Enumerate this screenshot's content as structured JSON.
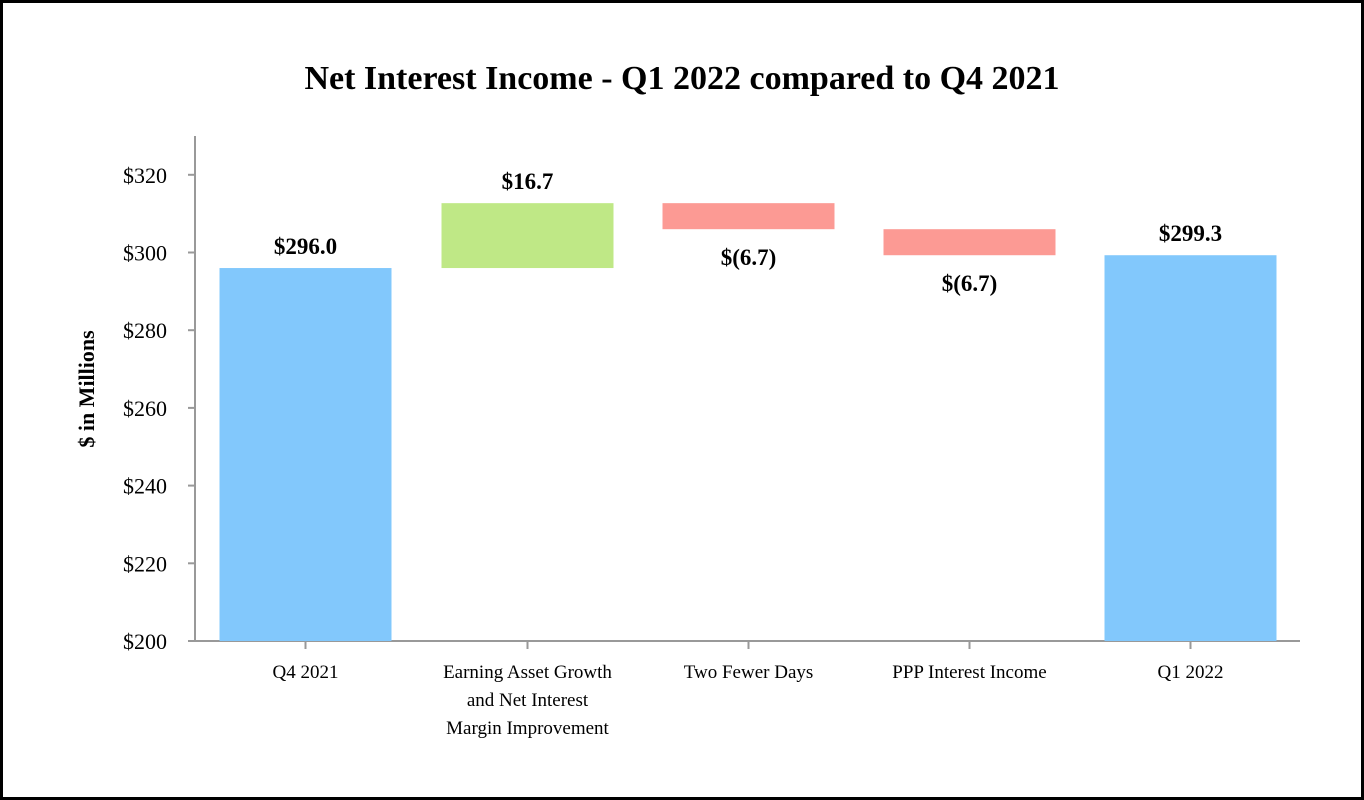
{
  "chart_data": {
    "type": "bar",
    "subtype": "waterfall",
    "title": "Net Interest Income - Q1 2022 compared to Q4 2021",
    "xlabel": "",
    "ylabel": "$ in Millions",
    "ylim": [
      200,
      330
    ],
    "yticks": [
      200,
      220,
      240,
      260,
      280,
      300,
      320
    ],
    "ytick_labels": [
      "$200",
      "$220",
      "$240",
      "$260",
      "$280",
      "$300",
      "$320"
    ],
    "grid": false,
    "categories": [
      [
        "Q4 2021"
      ],
      [
        "Earning Asset Growth",
        "and Net Interest",
        "Margin Improvement"
      ],
      [
        "Two Fewer Days"
      ],
      [
        "PPP Interest Income"
      ],
      [
        "Q1 2022"
      ]
    ],
    "bars": [
      {
        "kind": "total",
        "base": 200,
        "top": 296.0,
        "label": "$296.0"
      },
      {
        "kind": "increase",
        "base": 296.0,
        "top": 312.7,
        "label": "$16.7"
      },
      {
        "kind": "decrease",
        "base": 306.0,
        "top": 312.7,
        "label": "$(6.7)"
      },
      {
        "kind": "decrease",
        "base": 299.3,
        "top": 306.0,
        "label": "$(6.7)"
      },
      {
        "kind": "total",
        "base": 200,
        "top": 299.3,
        "label": "$299.3"
      }
    ],
    "colors": {
      "total": "#82c8fc",
      "increase": "#bfe886",
      "decrease": "#fc9a94",
      "axis": "#999999"
    }
  }
}
